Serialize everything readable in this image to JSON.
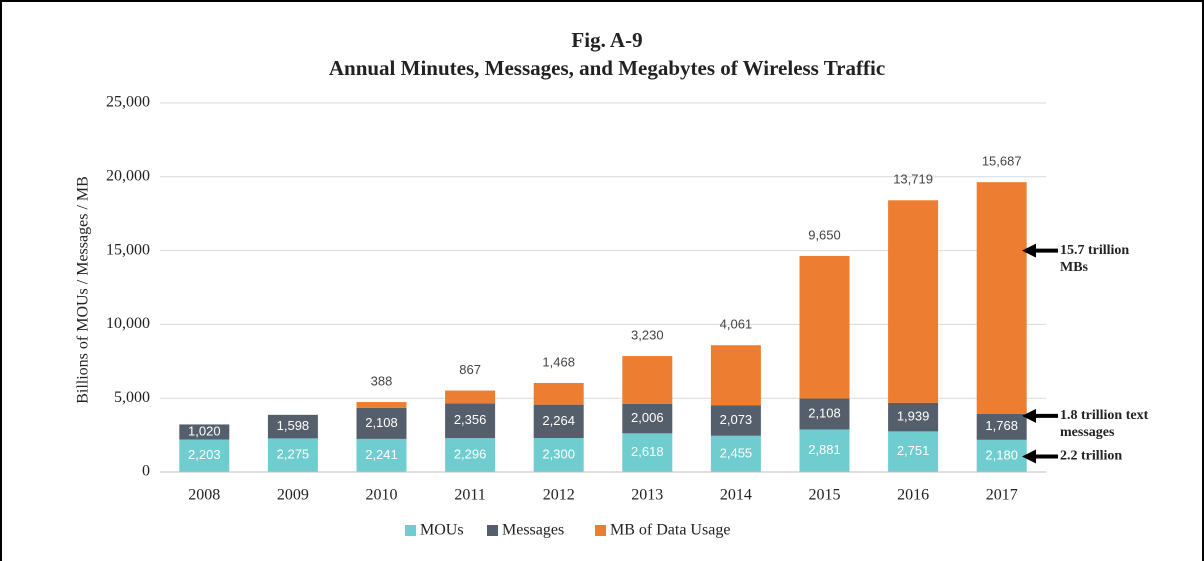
{
  "chart_data": {
    "type": "stacked_bar",
    "title": [
      "Fig. A-9",
      "Annual Minutes, Messages, and Megabytes of Wireless Traffic"
    ],
    "y_label": "Billions  of MOUs / Messages / MB",
    "categories": [
      "2008",
      "2009",
      "2010",
      "2011",
      "2012",
      "2013",
      "2014",
      "2015",
      "2016",
      "2017"
    ],
    "series": [
      {
        "name": "MOUs",
        "color": "#6fcdcf",
        "values": [
          2203,
          2275,
          2241,
          2296,
          2300,
          2618,
          2455,
          2881,
          2751,
          2180
        ],
        "value_labels": [
          "2,203",
          "2,275",
          "2,241",
          "2,296",
          "2,300",
          "2,618",
          "2,455",
          "2,881",
          "2,751",
          "2,180"
        ]
      },
      {
        "name": "Messages",
        "color": "#555f6b",
        "values": [
          1020,
          1598,
          2108,
          2356,
          2264,
          2006,
          2073,
          2108,
          1939,
          1768
        ],
        "value_labels": [
          "1,020",
          "1,598",
          "2,108",
          "2,356",
          "2,264",
          "2,006",
          "2,073",
          "2,108",
          "1,939",
          "1,768"
        ]
      },
      {
        "name": "MB of Data Usage",
        "color": "#ed7d31",
        "values": [
          null,
          null,
          388,
          867,
          1468,
          3230,
          4061,
          9650,
          13719,
          15687
        ],
        "value_labels": [
          null,
          null,
          "388",
          "867",
          "1,468",
          "3,230",
          "4,061",
          "9,650",
          "13,719",
          "15,687"
        ]
      }
    ],
    "ylim": [
      0,
      25000
    ],
    "yticks": [
      0,
      {
        "value": 5000,
        "label": "5,000"
      },
      {
        "value": 10000,
        "label": "10,000"
      },
      {
        "value": 15000,
        "label": "15,000"
      },
      {
        "value": 20000,
        "label": "20,000"
      },
      {
        "value": 25000,
        "label": "25,000"
      }
    ],
    "grid": true,
    "legend": "bottom",
    "annotations": [
      {
        "lines": [
          "15.7 trillion",
          "MBs"
        ],
        "y": 15000
      },
      {
        "lines": [
          "1.8 trillion text",
          "messages"
        ],
        "y": 3800
      },
      {
        "lines": [
          "2.2 trillion"
        ],
        "y": 1050
      }
    ]
  }
}
